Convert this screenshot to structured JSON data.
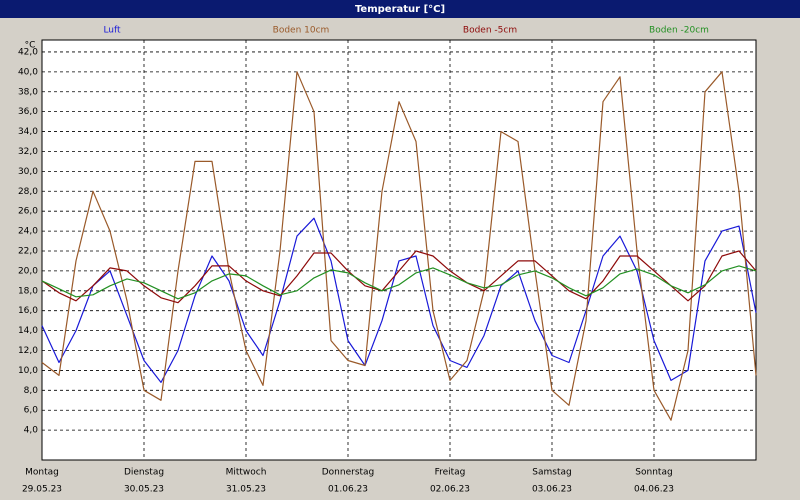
{
  "chart_data": {
    "type": "line",
    "title": "Temperatur [°C]",
    "y_unit": "°C",
    "x": [
      0,
      4,
      8,
      12,
      16,
      20,
      24,
      28,
      32,
      36,
      40,
      44,
      48,
      52,
      56,
      60,
      64,
      68,
      72,
      76,
      80,
      84,
      88,
      92,
      96,
      100,
      104,
      108,
      112,
      116,
      120,
      124,
      128,
      132,
      136,
      140,
      144,
      148,
      152,
      156,
      160,
      164,
      168
    ],
    "xlim": [
      0,
      168
    ],
    "xticks": [
      {
        "value": 0,
        "label": "Montag"
      },
      {
        "value": 24,
        "label": "Dienstag"
      },
      {
        "value": 48,
        "label": "Mittwoch"
      },
      {
        "value": 72,
        "label": "Donnerstag"
      },
      {
        "value": 96,
        "label": "Freitag"
      },
      {
        "value": 120,
        "label": "Samstag"
      },
      {
        "value": 144,
        "label": "Sonntag"
      }
    ],
    "xtick_dates": [
      {
        "value": 0,
        "label": "29.05.23"
      },
      {
        "value": 24,
        "label": "30.05.23"
      },
      {
        "value": 48,
        "label": "31.05.23"
      },
      {
        "value": 72,
        "label": "01.06.23"
      },
      {
        "value": 96,
        "label": "02.06.23"
      },
      {
        "value": 120,
        "label": "03.06.23"
      },
      {
        "value": 144,
        "label": "04.06.23"
      }
    ],
    "ylim": [
      1,
      43.2
    ],
    "yticks": [
      {
        "value": 4,
        "label": "4,0"
      },
      {
        "value": 6,
        "label": "6,0"
      },
      {
        "value": 8,
        "label": "8,0"
      },
      {
        "value": 10,
        "label": "10,0"
      },
      {
        "value": 12,
        "label": "12,0"
      },
      {
        "value": 14,
        "label": "14,0"
      },
      {
        "value": 16,
        "label": "16,0"
      },
      {
        "value": 18,
        "label": "18,0"
      },
      {
        "value": 20,
        "label": "20,0"
      },
      {
        "value": 22,
        "label": "22,0"
      },
      {
        "value": 24,
        "label": "24,0"
      },
      {
        "value": 26,
        "label": "26,0"
      },
      {
        "value": 28,
        "label": "28,0"
      },
      {
        "value": 30,
        "label": "30,0"
      },
      {
        "value": 32,
        "label": "32,0"
      },
      {
        "value": 34,
        "label": "34,0"
      },
      {
        "value": 36,
        "label": "36,0"
      },
      {
        "value": 38,
        "label": "38,0"
      },
      {
        "value": 40,
        "label": "40,0"
      },
      {
        "value": 42,
        "label": "42,0"
      }
    ],
    "grid": true,
    "series": [
      {
        "name": "Luft",
        "color": "#1a1ad8",
        "values": [
          14.5,
          10.8,
          14,
          18.5,
          20,
          15.5,
          11,
          8.8,
          12,
          17.5,
          21.5,
          19,
          14,
          11.5,
          17,
          23.5,
          25.3,
          21,
          13,
          10.5,
          15,
          21,
          21.5,
          14.5,
          11,
          10.3,
          13.5,
          18.5,
          20,
          15,
          11.5,
          10.8,
          16,
          21.5,
          23.5,
          20,
          13,
          9,
          10,
          21,
          24,
          24.5,
          15.8
        ]
      },
      {
        "name": "Boden 10cm",
        "color": "#9a5a2a",
        "values": [
          10.8,
          9.5,
          21,
          28,
          24,
          17,
          8,
          7,
          20,
          31,
          31,
          20,
          12,
          8.5,
          22,
          40,
          36,
          13,
          11,
          10.5,
          28,
          37,
          33,
          16,
          9,
          11,
          18,
          34,
          33,
          20,
          8,
          6.5,
          15,
          37,
          39.5,
          22,
          8,
          5,
          12,
          38,
          40,
          28,
          9.5
        ]
      },
      {
        "name": "Boden -5cm",
        "color": "#8e0a0a",
        "values": [
          19,
          17.8,
          17,
          18.5,
          20.3,
          20,
          18.5,
          17.3,
          16.8,
          18.5,
          20.5,
          20.5,
          19,
          18,
          17.5,
          19.5,
          21.8,
          21.8,
          20,
          18.5,
          18,
          20,
          22,
          21.5,
          20,
          18.8,
          18,
          19.5,
          21,
          21,
          19.5,
          18,
          17.2,
          19,
          21.5,
          21.5,
          20,
          18.5,
          17,
          18.5,
          21.5,
          22,
          20
        ]
      },
      {
        "name": "Boden -20cm",
        "color": "#239023",
        "values": [
          19,
          18.2,
          17.4,
          17.6,
          18.5,
          19.2,
          18.8,
          18,
          17.2,
          17.8,
          19,
          19.7,
          19.5,
          18.5,
          17.6,
          18,
          19.3,
          20.1,
          19.8,
          18.8,
          18,
          18.6,
          19.8,
          20.3,
          19.6,
          18.8,
          18.3,
          18.6,
          19.6,
          20,
          19.3,
          18.3,
          17.5,
          18.3,
          19.7,
          20.2,
          19.6,
          18.5,
          17.8,
          18.6,
          20,
          20.5,
          20
        ]
      }
    ]
  }
}
